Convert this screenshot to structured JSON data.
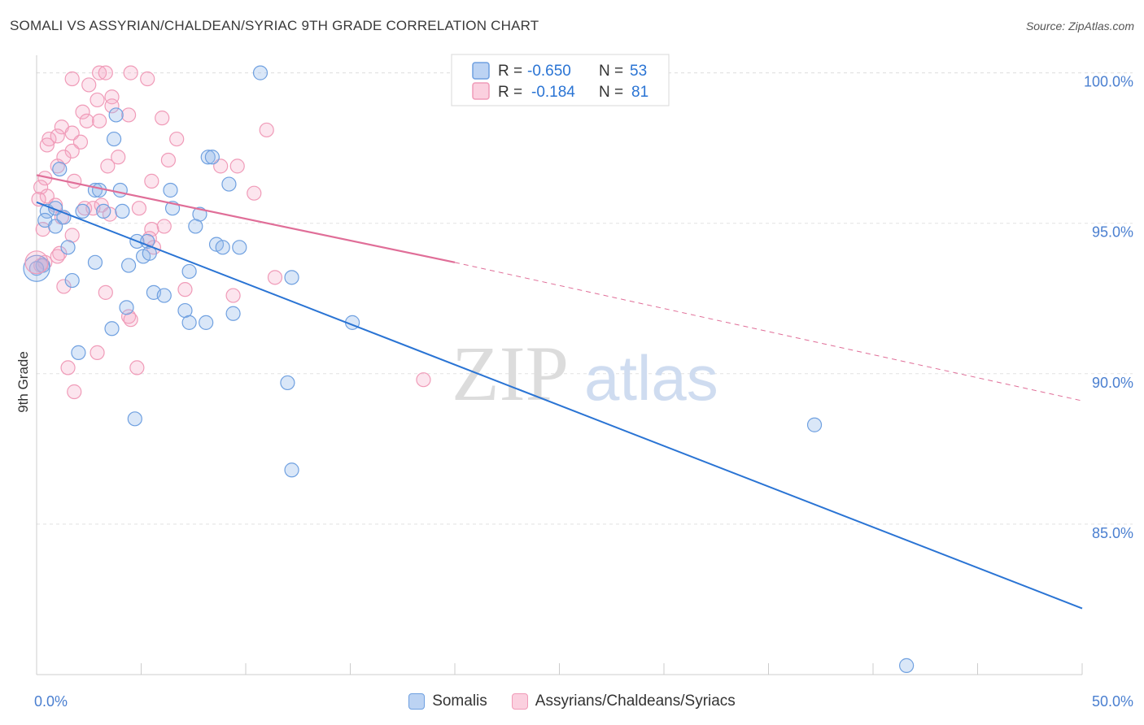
{
  "title": "SOMALI VS ASSYRIAN/CHALDEAN/SYRIAC 9TH GRADE CORRELATION CHART",
  "source": "Source: ZipAtlas.com",
  "watermark": {
    "zip": "ZIP",
    "atlas": "atlas"
  },
  "colors": {
    "blue": "#6fa0e0",
    "blue_line": "#2a74d4",
    "pink": "#f09bb8",
    "pink_line": "#e06e98",
    "axis_label": "#4a7fd0"
  },
  "chart_data": {
    "type": "scatter",
    "title": "SOMALI VS ASSYRIAN/CHALDEAN/SYRIAC 9TH GRADE CORRELATION CHART",
    "xlabel": "",
    "ylabel": "9th Grade",
    "xlim": [
      0,
      50
    ],
    "ylim": [
      80.0,
      100.8
    ],
    "x_tick_labels": [
      "0.0%",
      "50.0%"
    ],
    "y_ticks": [
      85,
      90,
      95,
      100
    ],
    "y_tick_labels": [
      "85.0%",
      "90.0%",
      "95.0%",
      "100.0%"
    ],
    "grid": true,
    "stats_legend": {
      "placement": "top-center",
      "rows": [
        {
          "r_label": "R =",
          "r_value": "-0.650",
          "n_label": "N =",
          "n_value": "53"
        },
        {
          "r_label": "R =",
          "r_value": "-0.184",
          "n_label": "N =",
          "n_value": "81"
        }
      ]
    },
    "series": [
      {
        "name": "Somalis",
        "color": "#6fa0e0",
        "trend": {
          "x": [
            0,
            50
          ],
          "y": [
            95.7,
            82.2
          ]
        },
        "points": [
          [
            10.7,
            100.0
          ],
          [
            3.8,
            98.6
          ],
          [
            3.7,
            97.8
          ],
          [
            8.2,
            97.2
          ],
          [
            8.4,
            97.2
          ],
          [
            9.2,
            96.3
          ],
          [
            1.1,
            96.8
          ],
          [
            2.8,
            96.1
          ],
          [
            3.0,
            96.1
          ],
          [
            4.0,
            96.1
          ],
          [
            6.4,
            96.1
          ],
          [
            0.5,
            95.4
          ],
          [
            0.9,
            95.5
          ],
          [
            2.2,
            95.4
          ],
          [
            3.2,
            95.4
          ],
          [
            4.1,
            95.4
          ],
          [
            6.5,
            95.5
          ],
          [
            7.8,
            95.3
          ],
          [
            0.4,
            95.1
          ],
          [
            0.9,
            94.9
          ],
          [
            1.3,
            95.2
          ],
          [
            7.6,
            94.9
          ],
          [
            4.8,
            94.4
          ],
          [
            5.3,
            94.4
          ],
          [
            8.6,
            94.3
          ],
          [
            8.9,
            94.2
          ],
          [
            9.7,
            94.2
          ],
          [
            1.5,
            94.2
          ],
          [
            5.1,
            93.9
          ],
          [
            5.4,
            94.0
          ],
          [
            2.8,
            93.7
          ],
          [
            4.4,
            93.6
          ],
          [
            7.3,
            93.4
          ],
          [
            0.3,
            93.6
          ],
          [
            0.0,
            93.5
          ],
          [
            1.7,
            93.1
          ],
          [
            12.2,
            93.2
          ],
          [
            5.6,
            92.7
          ],
          [
            6.1,
            92.6
          ],
          [
            4.3,
            92.2
          ],
          [
            7.1,
            92.1
          ],
          [
            9.4,
            92.0
          ],
          [
            7.3,
            91.7
          ],
          [
            8.1,
            91.7
          ],
          [
            15.1,
            91.7
          ],
          [
            3.6,
            91.5
          ],
          [
            2.0,
            90.7
          ],
          [
            12.0,
            89.7
          ],
          [
            4.7,
            88.5
          ],
          [
            37.2,
            88.3
          ],
          [
            12.2,
            86.8
          ],
          [
            41.6,
            80.3
          ]
        ]
      },
      {
        "name": "Assyrians/Chaldeans/Syriacs",
        "color": "#f09bb8",
        "trend": {
          "x": [
            0,
            20
          ],
          "y": [
            96.6,
            93.7
          ]
        },
        "trend_dashed": {
          "x": [
            20,
            50
          ],
          "y": [
            93.7,
            89.1
          ]
        },
        "points": [
          [
            3.0,
            100.0
          ],
          [
            3.3,
            100.0
          ],
          [
            4.5,
            100.0
          ],
          [
            1.7,
            99.8
          ],
          [
            5.3,
            99.8
          ],
          [
            2.5,
            99.6
          ],
          [
            3.6,
            99.2
          ],
          [
            2.9,
            99.1
          ],
          [
            2.2,
            98.7
          ],
          [
            3.6,
            98.9
          ],
          [
            4.4,
            98.6
          ],
          [
            6.0,
            98.5
          ],
          [
            2.4,
            98.4
          ],
          [
            3.0,
            98.4
          ],
          [
            1.2,
            98.2
          ],
          [
            1.7,
            98.0
          ],
          [
            0.6,
            97.8
          ],
          [
            1.0,
            97.9
          ],
          [
            2.1,
            97.7
          ],
          [
            6.7,
            97.8
          ],
          [
            0.5,
            97.6
          ],
          [
            1.7,
            97.4
          ],
          [
            1.3,
            97.2
          ],
          [
            3.9,
            97.2
          ],
          [
            6.3,
            97.1
          ],
          [
            11.0,
            98.1
          ],
          [
            9.6,
            96.9
          ],
          [
            3.4,
            96.9
          ],
          [
            1.0,
            96.9
          ],
          [
            0.4,
            96.5
          ],
          [
            1.8,
            96.4
          ],
          [
            5.5,
            96.4
          ],
          [
            8.8,
            96.9
          ],
          [
            10.4,
            96.0
          ],
          [
            0.2,
            96.2
          ],
          [
            0.5,
            95.9
          ],
          [
            2.3,
            95.5
          ],
          [
            0.1,
            95.8
          ],
          [
            0.9,
            95.6
          ],
          [
            2.7,
            95.5
          ],
          [
            3.1,
            95.6
          ],
          [
            4.9,
            95.5
          ],
          [
            1.2,
            95.2
          ],
          [
            3.5,
            95.3
          ],
          [
            6.1,
            94.9
          ],
          [
            0.3,
            94.8
          ],
          [
            5.5,
            94.8
          ],
          [
            1.7,
            94.6
          ],
          [
            5.4,
            94.5
          ],
          [
            5.6,
            94.2
          ],
          [
            1.1,
            94.0
          ],
          [
            1.0,
            93.9
          ],
          [
            0.4,
            93.7
          ],
          [
            0.2,
            93.6
          ],
          [
            11.4,
            93.2
          ],
          [
            1.3,
            92.9
          ],
          [
            3.3,
            92.7
          ],
          [
            7.1,
            92.8
          ],
          [
            9.4,
            92.6
          ],
          [
            4.4,
            91.9
          ],
          [
            4.5,
            91.8
          ],
          [
            2.9,
            90.7
          ],
          [
            1.5,
            90.2
          ],
          [
            4.8,
            90.2
          ],
          [
            18.5,
            89.8
          ],
          [
            1.8,
            89.4
          ]
        ]
      }
    ]
  }
}
